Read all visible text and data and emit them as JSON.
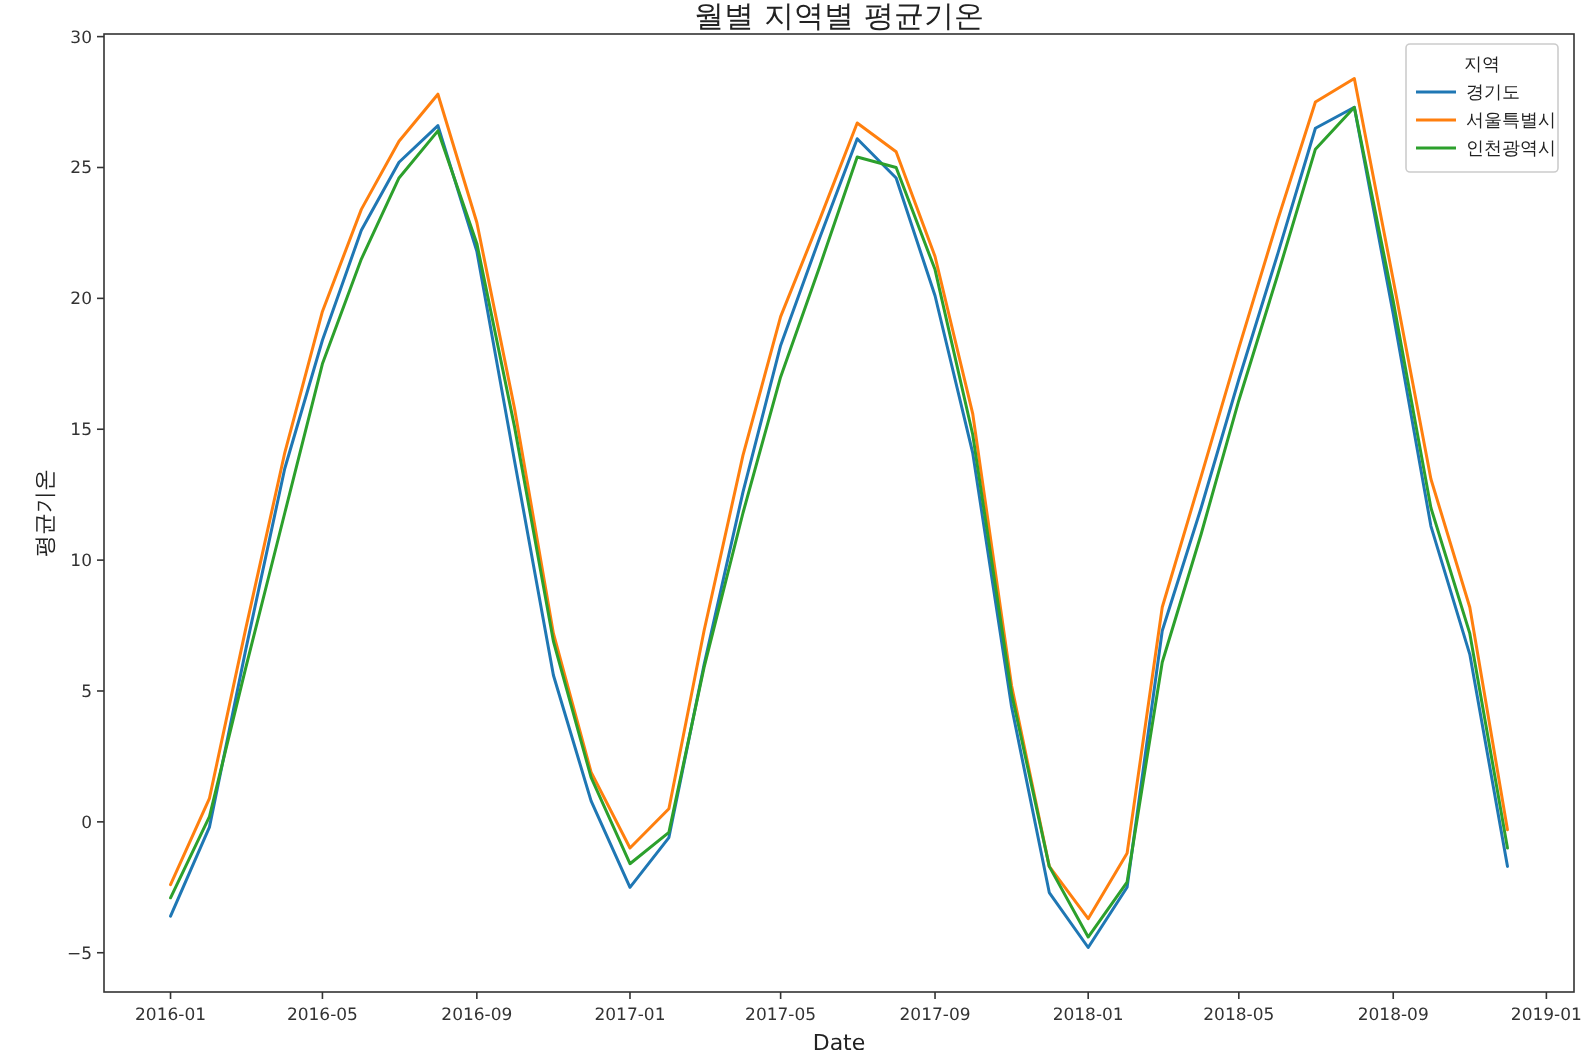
{
  "chart_data": {
    "type": "line",
    "title": "월별 지역별 평균기온",
    "xlabel": "Date",
    "ylabel": "평균기온",
    "legend_title": "지역",
    "legend": "top right",
    "grid": false,
    "x": [
      "2016-01",
      "2016-02",
      "2016-03",
      "2016-04",
      "2016-05",
      "2016-06",
      "2016-07",
      "2016-08",
      "2016-09",
      "2016-10",
      "2016-11",
      "2016-12",
      "2017-01",
      "2017-02",
      "2017-03",
      "2017-04",
      "2017-05",
      "2017-06",
      "2017-07",
      "2017-08",
      "2017-09",
      "2017-10",
      "2017-11",
      "2017-12",
      "2018-01",
      "2018-02",
      "2018-03",
      "2018-04",
      "2018-05",
      "2018-06",
      "2018-07",
      "2018-08",
      "2018-09",
      "2018-10",
      "2018-11",
      "2018-12"
    ],
    "series": [
      {
        "name": "경기도",
        "color": "#1f77b4",
        "values": [
          -3.6,
          -0.2,
          6.6,
          13.5,
          18.4,
          22.6,
          25.2,
          26.6,
          21.8,
          13.8,
          5.6,
          0.8,
          -2.5,
          -0.6,
          6.0,
          12.6,
          18.2,
          22.3,
          26.1,
          24.6,
          20.1,
          14.1,
          4.4,
          -2.7,
          -4.8,
          -2.5,
          7.3,
          12.0,
          16.9,
          21.7,
          26.5,
          27.3,
          19.4,
          11.3,
          6.4,
          -1.7
        ]
      },
      {
        "name": "서울특별시",
        "color": "#ff7f0e",
        "values": [
          -2.4,
          0.9,
          7.4,
          14.1,
          19.5,
          23.4,
          26.0,
          27.8,
          22.9,
          15.8,
          7.2,
          1.9,
          -1.0,
          0.5,
          7.3,
          14.0,
          19.3,
          23.0,
          26.7,
          25.6,
          21.6,
          15.6,
          5.2,
          -1.7,
          -3.7,
          -1.2,
          8.2,
          13.2,
          18.1,
          23.0,
          27.5,
          28.4,
          20.7,
          13.1,
          8.2,
          -0.3
        ]
      },
      {
        "name": "인천광역시",
        "color": "#2ca02c",
        "values": [
          -2.9,
          0.2,
          5.9,
          11.8,
          17.5,
          21.5,
          24.6,
          26.4,
          22.1,
          15.1,
          6.9,
          1.7,
          -1.6,
          -0.4,
          5.9,
          11.8,
          17.0,
          21.2,
          25.4,
          25.0,
          21.1,
          14.8,
          4.9,
          -1.7,
          -4.4,
          -2.3,
          6.1,
          11.0,
          16.1,
          20.9,
          25.7,
          27.3,
          19.9,
          12.0,
          7.2,
          -1.0
        ]
      }
    ],
    "xlim": [
      "2015-11-09",
      "2019-01-23"
    ],
    "xticks": [
      "2016-01",
      "2016-05",
      "2016-09",
      "2017-01",
      "2017-05",
      "2017-09",
      "2018-01",
      "2018-05",
      "2018-09",
      "2019-01"
    ],
    "ylim": [
      -6.5,
      30.1
    ],
    "yticks": [
      {
        "value": -5,
        "label": "−5"
      },
      0,
      5,
      10,
      15,
      20,
      25,
      30
    ]
  }
}
